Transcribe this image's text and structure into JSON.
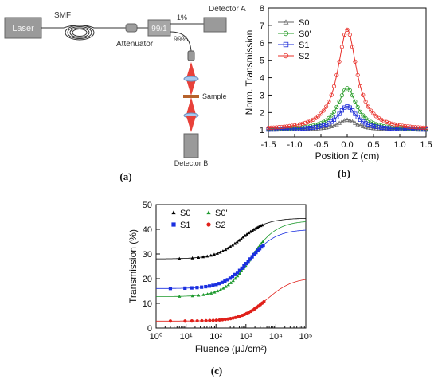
{
  "schematic": {
    "laser": "Laser",
    "smf": "SMF",
    "attenuator": "Attenuator",
    "coupler": "99/1",
    "one_percent": "1%",
    "ninety_nine_percent": "99%",
    "detector_a": "Detector A",
    "sample": "Sample",
    "detector_b": "Detector B",
    "panel_label": "(a)"
  },
  "panel_b_label": "(b)",
  "panel_c_label": "(c)",
  "chart_data": [
    {
      "type": "line",
      "xlabel": "Position Z (cm)",
      "ylabel": "Norm. Transmission",
      "xlim": [
        -1.5,
        1.5
      ],
      "ylim": [
        0.6,
        8
      ],
      "xticks": [
        "-1.5",
        "-1.0",
        "-0.5",
        "0.0",
        "0.5",
        "1.0",
        "1.5"
      ],
      "yticks": [
        "1",
        "2",
        "3",
        "4",
        "5",
        "6",
        "7",
        "8"
      ],
      "legend_position": "top-left",
      "series": [
        {
          "name": "S0",
          "peak": 1.58,
          "color": "#666666",
          "marker": "triangle"
        },
        {
          "name": "S0'",
          "peak": 3.4,
          "color": "#2a9d2a",
          "marker": "circle"
        },
        {
          "name": "S1",
          "peak": 2.35,
          "color": "#1f2fd8",
          "marker": "square"
        },
        {
          "name": "S2",
          "peak": 6.75,
          "color": "#e8302a",
          "marker": "circle"
        }
      ]
    },
    {
      "type": "scatter",
      "xlabel": "Fluence (μJ/cm²)",
      "ylabel": "Transmission (%)",
      "xscale": "log",
      "xlim": [
        1,
        100000
      ],
      "ylim": [
        0,
        50
      ],
      "xticks": [
        "10⁰",
        "10¹",
        "10²",
        "10³",
        "10⁴",
        "10⁵"
      ],
      "yticks": [
        "0",
        "10",
        "20",
        "30",
        "40",
        "50"
      ],
      "legend_position": "top-left",
      "series": [
        {
          "name": "S0",
          "color": "#000000",
          "marker": "triangle",
          "low": 28,
          "high": 44.5,
          "f_mid": 700,
          "f_min": 6,
          "f_max": 3500
        },
        {
          "name": "S0'",
          "color": "#1e9a2e",
          "marker": "triangle",
          "low": 12.7,
          "high": 43.5,
          "f_mid": 1400,
          "f_min": 6,
          "f_max": 3700
        },
        {
          "name": "S1",
          "color": "#1a2fe0",
          "marker": "square",
          "low": 16,
          "high": 40,
          "f_mid": 1400,
          "f_min": 3,
          "f_max": 3800
        },
        {
          "name": "S2",
          "color": "#e0201a",
          "marker": "circle",
          "low": 2.8,
          "high": 20.5,
          "f_mid": 5000,
          "f_min": 3,
          "f_max": 4000
        }
      ]
    }
  ]
}
